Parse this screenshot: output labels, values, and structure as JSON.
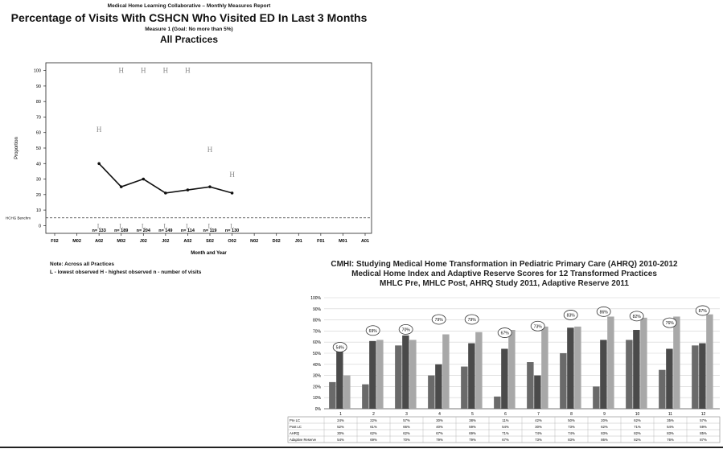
{
  "chart_data": [
    {
      "type": "line",
      "header": "Medical Home Learning Collaborative – Monthly Measures Report",
      "title": "Percentage of Visits With CSHCN Who Visited ED In Last 3 Months",
      "subtitle": "Measure 1  (Goal:  No more than 5%)",
      "subtitle2": "All Practices",
      "xlabel": "Month and Year",
      "ylabel": "Proportion",
      "ylim": [
        -5,
        105
      ],
      "yticks": [
        0,
        10,
        20,
        30,
        40,
        50,
        60,
        70,
        80,
        90,
        100
      ],
      "categories": [
        "F02",
        "M02",
        "A02",
        "M02",
        "J02",
        "J02",
        "A02",
        "S02",
        "O02",
        "N02",
        "D02",
        "J01",
        "F01",
        "M01",
        "A01"
      ],
      "series": [
        {
          "values": [
            null,
            null,
            40,
            25,
            30,
            21,
            23,
            25,
            21,
            null,
            null,
            null,
            null,
            null,
            null
          ]
        }
      ],
      "high_values": [
        null,
        null,
        62,
        100,
        100,
        100,
        100,
        49,
        33,
        null,
        null,
        null,
        null,
        null,
        null
      ],
      "low_values": [
        null,
        null,
        0,
        0,
        0,
        0,
        0,
        0,
        0,
        null,
        null,
        null,
        null,
        null,
        null
      ],
      "n_labels": [
        null,
        null,
        "n= 133",
        "n= 189",
        "n= 204",
        "n= 149",
        "n= 114",
        "n= 119",
        "n= 130",
        null,
        null,
        null,
        null,
        null,
        null
      ],
      "goal_line": 5,
      "goal_label": "HCHG Benchm",
      "legend_note": "Note:  Across all Practices",
      "legend_items": "L -  lowest observed      H -  highest observed      n -  number of visits",
      "grid": false
    },
    {
      "type": "bar",
      "title_line1": "CMHI: Studying Medical Home Transformation in Pediatric Primary Care (AHRQ) 2010-2012",
      "title_line2": "Medical Home Index and Adaptive Reserve Scores for 12 Transformed Practices",
      "title_line3": "MHLC Pre, MHLC Post, AHRQ Study 2011, Adaptive Reserve 2011",
      "ylim": [
        0,
        100
      ],
      "yticks": [
        "0%",
        "10%",
        "20%",
        "30%",
        "40%",
        "50%",
        "60%",
        "70%",
        "80%",
        "90%",
        "100%"
      ],
      "categories": [
        "1",
        "2",
        "3",
        "4",
        "5",
        "6",
        "7",
        "8",
        "9",
        "10",
        "11",
        "12"
      ],
      "category_sublabels": [
        "611",
        "726",
        "658",
        "762",
        "653",
        "765",
        "582",
        "620",
        "959",
        "975",
        "906",
        "596"
      ],
      "series": [
        {
          "name": "Pre LC",
          "values": [
            24,
            22,
            57,
            30,
            38,
            11,
            42,
            50,
            20,
            62,
            35,
            57
          ]
        },
        {
          "name": "Post LC",
          "values": [
            52,
            61,
            66,
            40,
            59,
            54,
            30,
            73,
            62,
            71,
            54,
            59
          ]
        },
        {
          "name": "AHRQ",
          "values": [
            30,
            62,
            62,
            67,
            69,
            71,
            74,
            74,
            83,
            82,
            83,
            85
          ]
        }
      ],
      "bubble_values": [
        54,
        69,
        70,
        79,
        79,
        67,
        73,
        83,
        86,
        82,
        76,
        87
      ],
      "table": {
        "rows": [
          {
            "label": "Pre LC",
            "values": [
              "24%",
              "22%",
              "57%",
              "30%",
              "38%",
              "11%",
              "42%",
              "50%",
              "20%",
              "62%",
              "35%",
              "57%"
            ]
          },
          {
            "label": "Post LC",
            "values": [
              "52%",
              "61%",
              "66%",
              "40%",
              "59%",
              "54%",
              "30%",
              "73%",
              "62%",
              "71%",
              "54%",
              "59%"
            ]
          },
          {
            "label": "AHRQ",
            "values": [
              "30%",
              "62%",
              "62%",
              "67%",
              "69%",
              "71%",
              "74%",
              "74%",
              "83%",
              "82%",
              "83%",
              "85%"
            ]
          },
          {
            "label": "Adaptive Reserve",
            "values": [
              "54%",
              "69%",
              "70%",
              "79%",
              "79%",
              "67%",
              "73%",
              "83%",
              "86%",
              "82%",
              "76%",
              "87%"
            ]
          }
        ]
      },
      "colors": {
        "pre": "#6a6a6a",
        "post": "#4a4a4a",
        "ahrq": "#a8a8a8"
      },
      "grid": true
    }
  ]
}
